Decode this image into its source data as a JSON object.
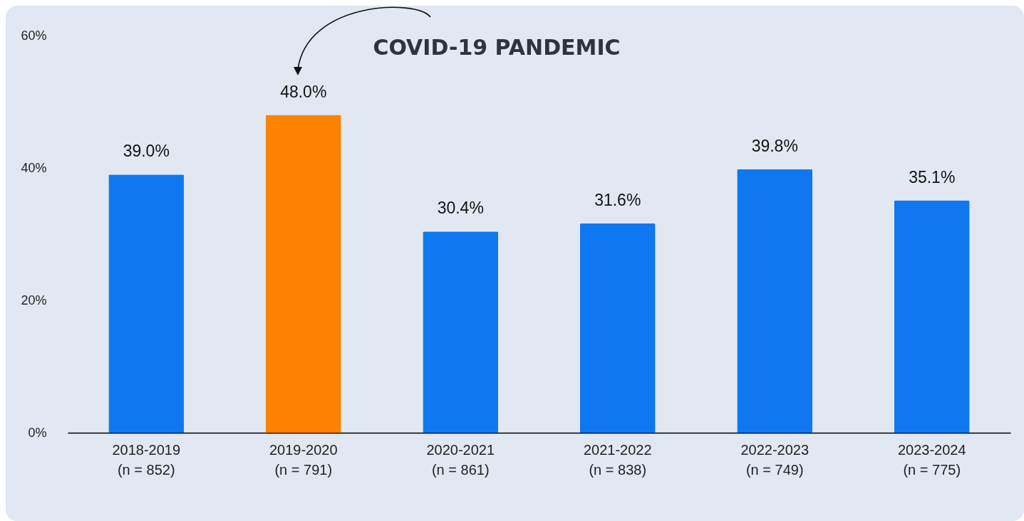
{
  "chart_data": {
    "type": "bar",
    "categories": [
      "2018-2019\n(n = 852)",
      "2019-2020\n(n = 791)",
      "2020-2021\n(n = 861)",
      "2021-2022\n(n = 838)",
      "2022-2023\n(n = 749)",
      "2023-2024\n(n = 775)"
    ],
    "values": [
      39.0,
      48.0,
      30.4,
      31.6,
      39.8,
      35.1
    ],
    "colors": [
      "#0f78f0",
      "#ff8200",
      "#0f78f0",
      "#0f78f0",
      "#0f78f0",
      "#0f78f0"
    ],
    "value_labels": [
      "39.0%",
      "48.0%",
      "30.4%",
      "31.6%",
      "39.8%",
      "35.1%"
    ],
    "ylim": [
      0,
      60
    ],
    "yticks": [
      {
        "value": 0,
        "label": "0%"
      },
      {
        "value": 20,
        "label": "20%"
      },
      {
        "value": 40,
        "label": "40%"
      },
      {
        "value": 60,
        "label": "60%"
      }
    ],
    "annotations": [
      "COVID-19 PANDEMIC"
    ]
  }
}
